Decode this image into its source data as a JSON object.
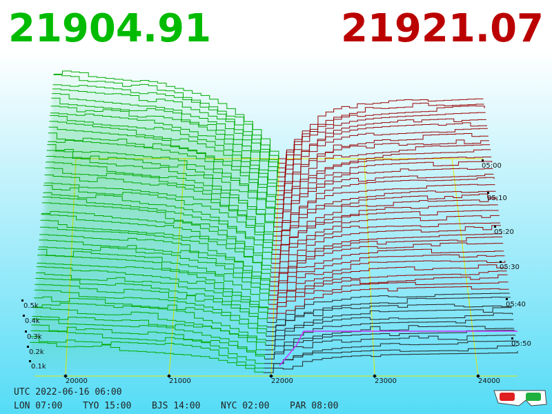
{
  "bid": "21904.91",
  "ask": "21921.07",
  "price_axis": [
    "20000",
    "21000",
    "22000",
    "23000",
    "24000"
  ],
  "depth_axis": [
    "0.5k",
    "0.4k",
    "0.3k",
    "0.2k",
    "0.1k"
  ],
  "time_axis": [
    "05:00",
    "05:10",
    "05:20",
    "05:30",
    "05:40",
    "05:50"
  ],
  "footer": {
    "utc": "UTC 2022-06-16 06:00",
    "clocks": [
      "LON 07:00",
      "TYO 15:00",
      "BJS 14:00",
      "NYC 02:00",
      "PAR 08:00"
    ]
  }
}
